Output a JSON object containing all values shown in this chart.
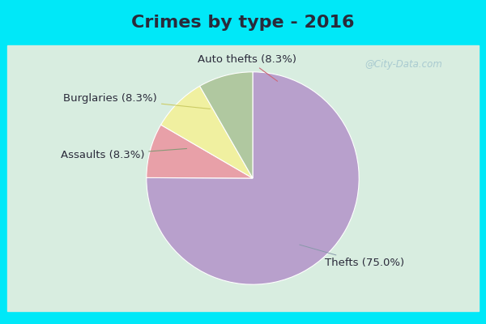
{
  "title": "Crimes by type - 2016",
  "slices": [
    {
      "label": "Thefts (75.0%)",
      "value": 75.0,
      "color": "#b8a0cc"
    },
    {
      "label": "Auto thefts (8.3%)",
      "value": 8.3,
      "color": "#e8a0a8"
    },
    {
      "label": "Burglaries (8.3%)",
      "value": 8.3,
      "color": "#f0f0a0"
    },
    {
      "label": "Assaults (8.3%)",
      "value": 8.3,
      "color": "#b0c8a0"
    }
  ],
  "background_cyan": "#00e8f8",
  "background_body": "#d8ede0",
  "title_fontsize": 16,
  "label_fontsize": 9.5,
  "watermark": "@City-Data.com",
  "title_color": "#2a2a3a"
}
